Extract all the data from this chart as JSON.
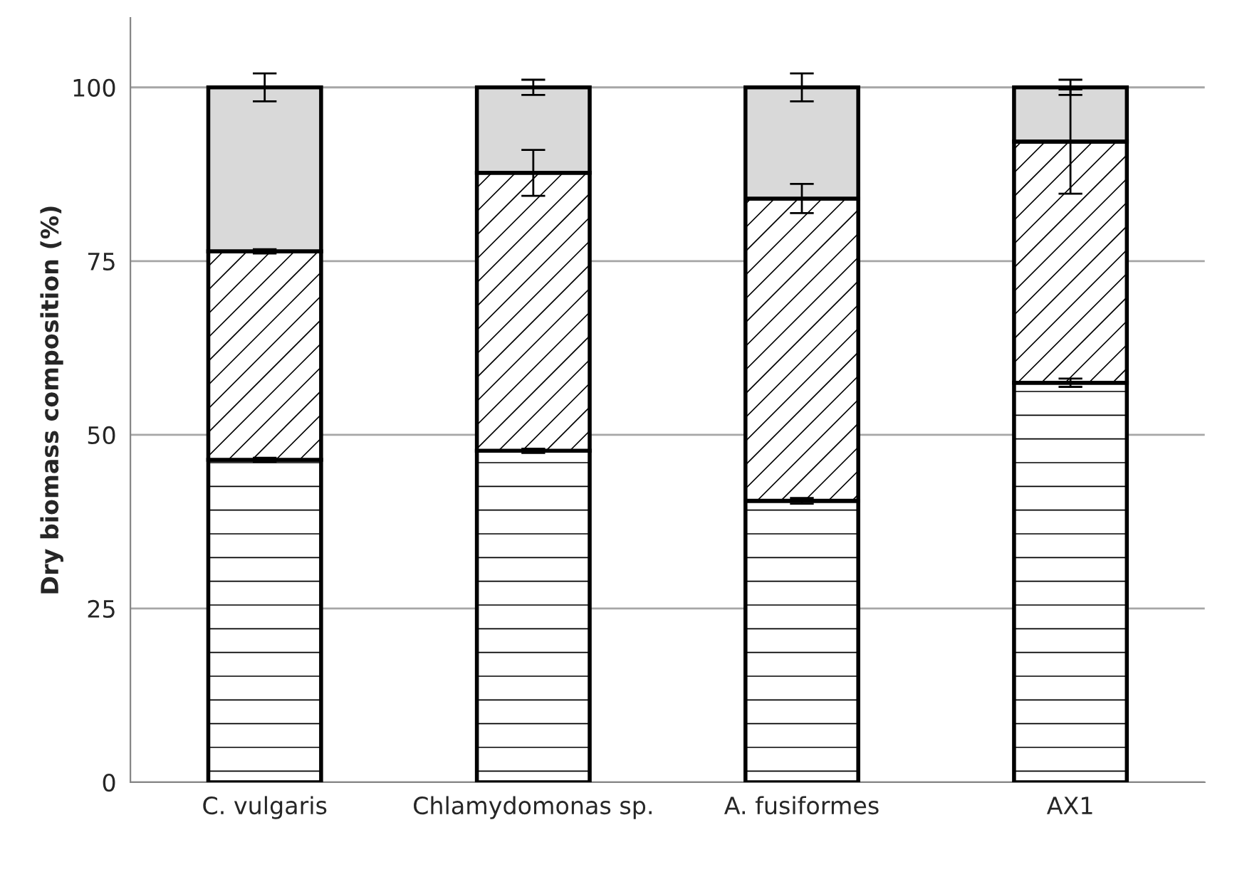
{
  "chart_data": {
    "type": "bar",
    "stacked": true,
    "ylabel": "Dry biomass composition (%)",
    "categories": [
      "C. vulgaris",
      "Chlamydomonas sp.",
      "A. fusiformes",
      "AX1"
    ],
    "series": [
      {
        "color": "#ffffff",
        "values": [
          46.4,
          47.7,
          40.5,
          57.5
        ],
        "errors": [
          0.3,
          0.3,
          0.4,
          0.6
        ]
      },
      {
        "color": "#ffffff",
        "values": [
          30.0,
          40.0,
          43.5,
          34.7
        ],
        "errors": [
          0.3,
          3.3,
          2.1,
          7.5
        ]
      },
      {
        "color": "#d9d9d9",
        "values": [
          23.6,
          12.3,
          16.0,
          7.8
        ],
        "errors": [
          2.0,
          1.1,
          2.0,
          1.1
        ]
      }
    ],
    "ylim": [
      0,
      110
    ],
    "yticks": [
      0,
      25,
      50,
      75,
      100
    ],
    "grid": "y",
    "legend": false
  }
}
